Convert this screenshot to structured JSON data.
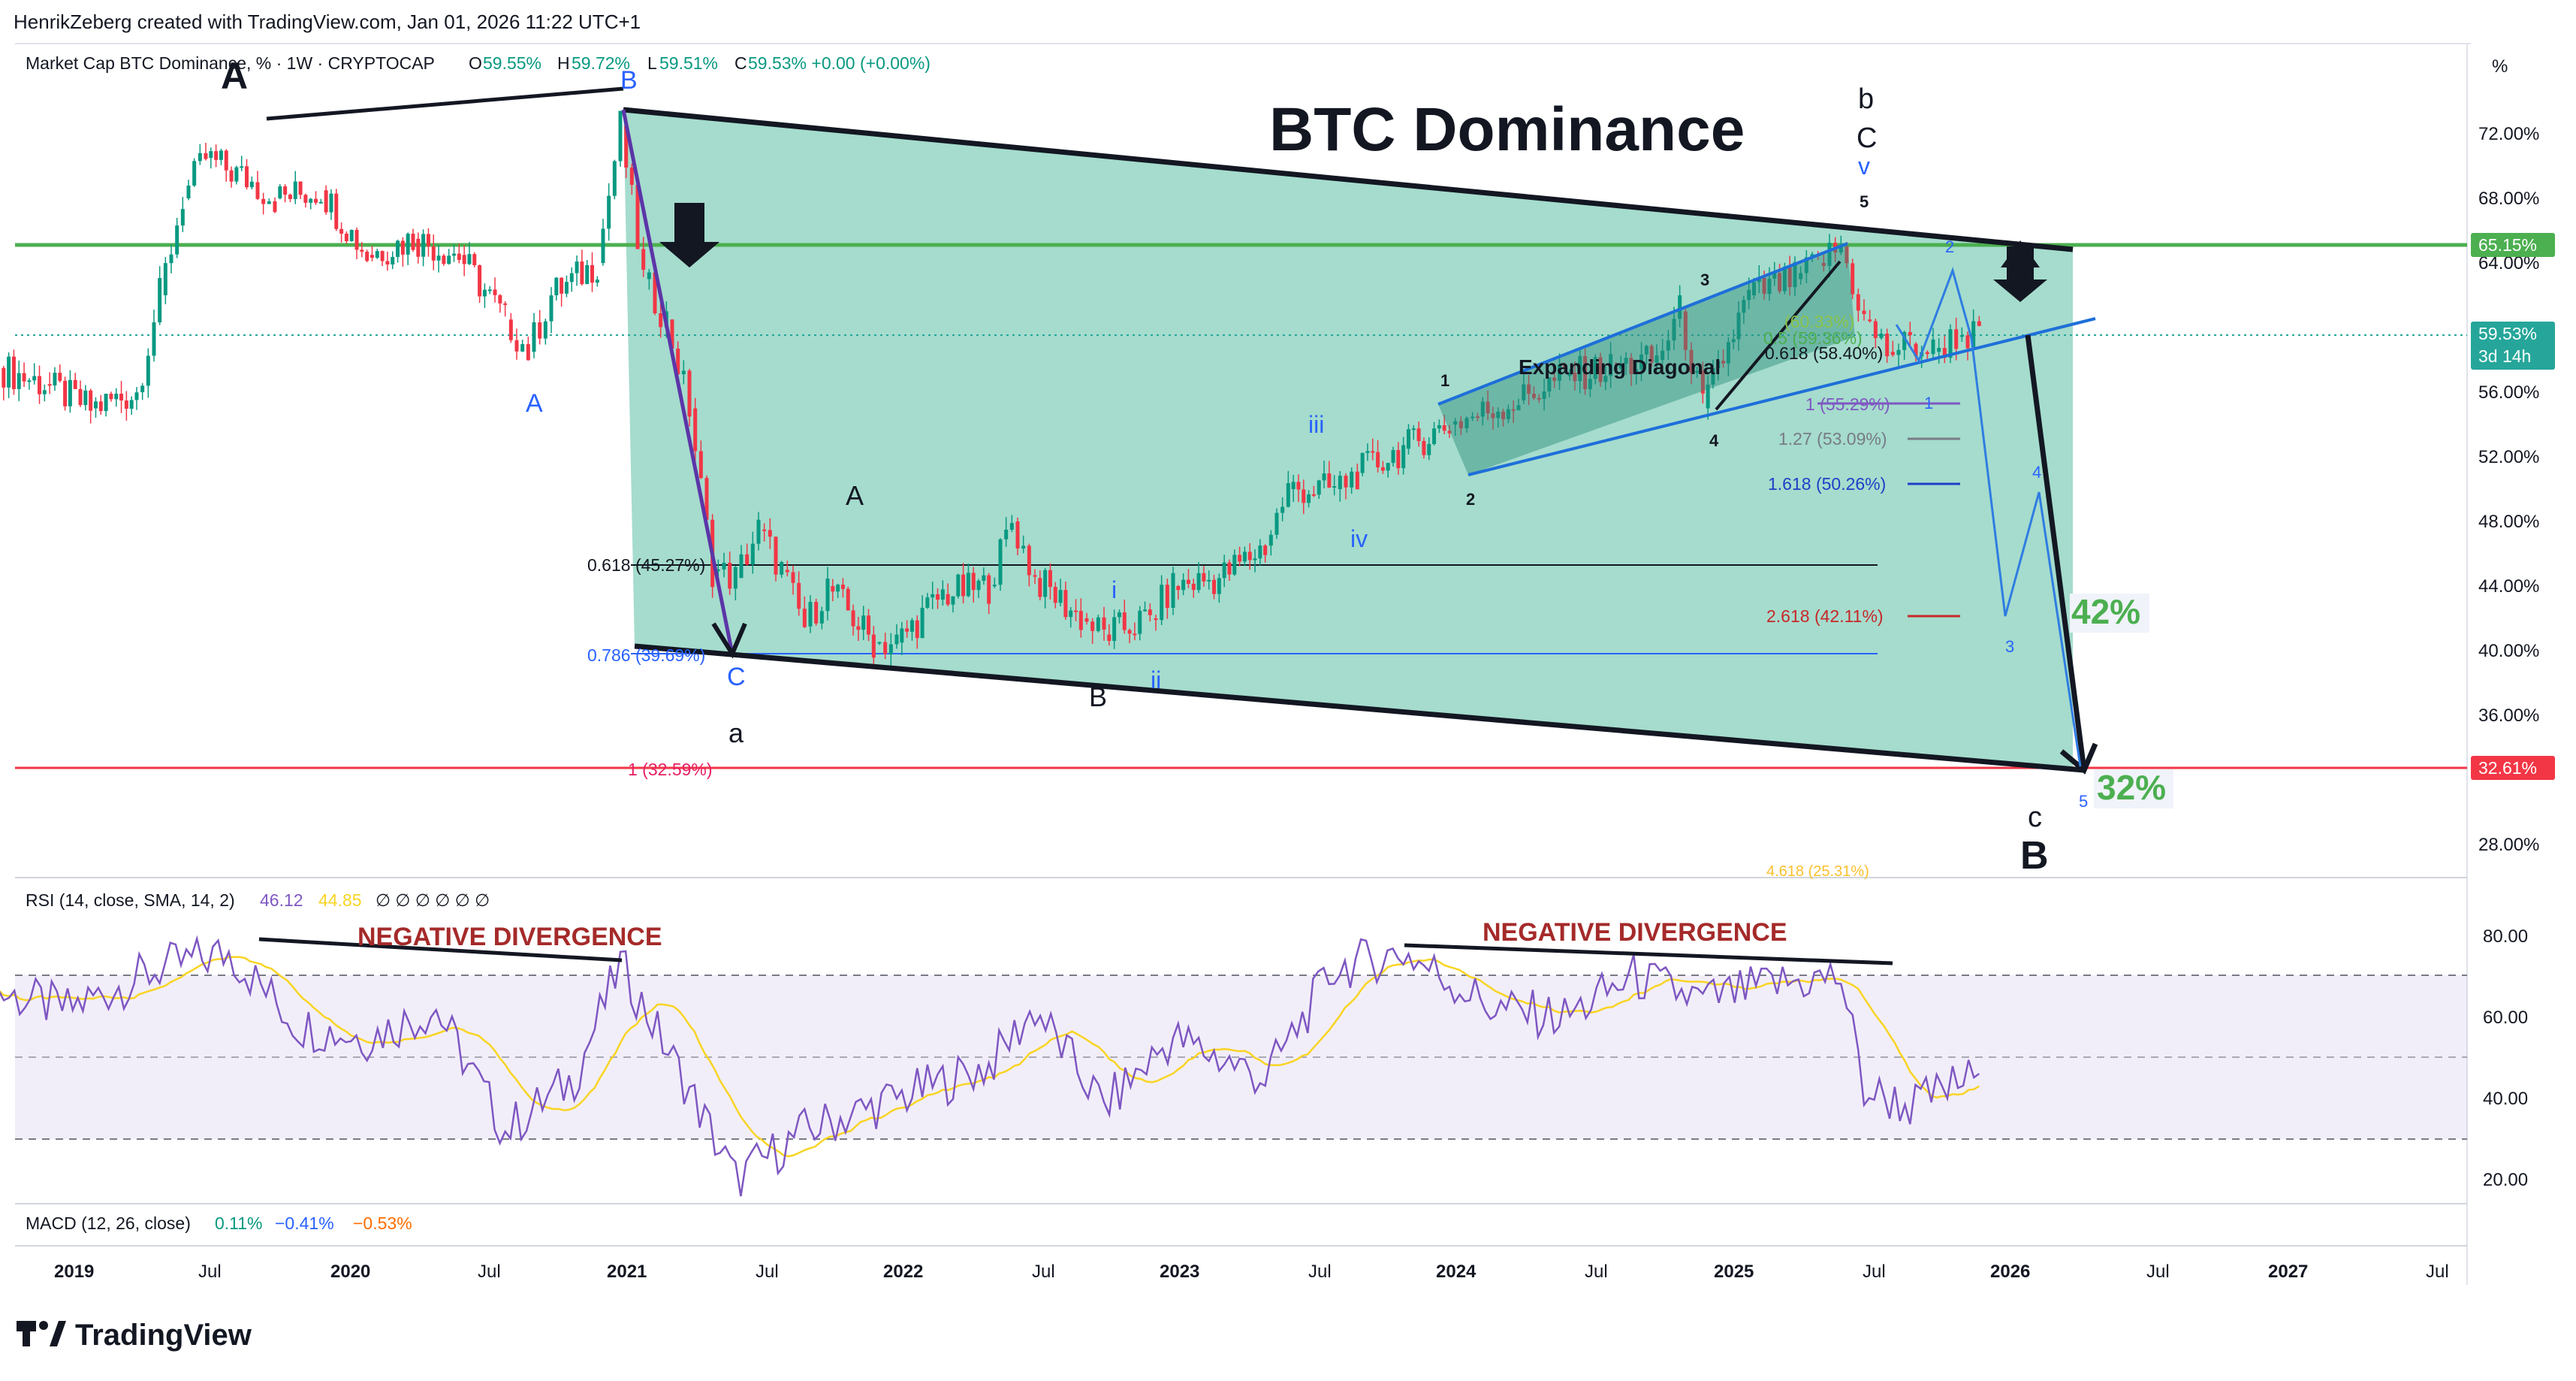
{
  "header": {
    "credit": "HenrikZeberg created with TradingView.com, Jan 01, 2026 11:22 UTC+1",
    "symbol": "Market Cap BTC Dominance, % · 1W · CRYPTOCAP",
    "ohlc": [
      {
        "k": "O",
        "v": "59.55%"
      },
      {
        "k": "H",
        "v": "59.72%"
      },
      {
        "k": "L",
        "v": "59.51%"
      },
      {
        "k": "C",
        "v": "59.53% +0.00 (+0.00%)"
      }
    ],
    "unit": "%"
  },
  "title": "BTC Dominance",
  "price_axis": {
    "ticks": [
      "72.00%",
      "68.00%",
      "64.00%",
      "56.00%",
      "52.00%",
      "48.00%",
      "44.00%",
      "40.00%",
      "36.00%",
      "28.00%"
    ],
    "badges": [
      {
        "label": "65.15%",
        "color": "#4caf50"
      },
      {
        "label": "59.53%",
        "label2": "3d 14h",
        "color": "#26a69a"
      },
      {
        "label": "32.61%",
        "color": "#f23645"
      }
    ]
  },
  "time_axis": [
    "2019",
    "Jul",
    "2020",
    "Jul",
    "2021",
    "Jul",
    "2022",
    "Jul",
    "2023",
    "Jul",
    "2024",
    "Jul",
    "2025",
    "Jul",
    "2026",
    "Jul",
    "2027",
    "Jul"
  ],
  "rsi": {
    "label": "RSI (14, close, SMA, 14, 2)",
    "value": "46.12",
    "sma": "44.85",
    "nulls": "∅ ∅ ∅ ∅ ∅ ∅",
    "ticks": [
      "80.00",
      "60.00",
      "40.00",
      "20.00"
    ],
    "divergence_label": "NEGATIVE DIVERGENCE"
  },
  "macd": {
    "label": "MACD (12, 26, close)",
    "v1": "0.11%",
    "v2": "−0.41%",
    "v3": "−0.53%"
  },
  "annotations": {
    "wave_A_top": "A",
    "wave_B_top": "B",
    "wave_A_blue": "A",
    "wave_C_blue": "C",
    "wave_a": "a",
    "wave_A_mid": "A",
    "wave_B_mid": "B",
    "wave_i": "i",
    "wave_ii": "ii",
    "wave_iii": "iii",
    "wave_iv": "iv",
    "wave_v": "v",
    "wave_b": "b",
    "wave_C_top": "C",
    "wave_c": "c",
    "wave_B_final": "B",
    "diag_1": "1",
    "diag_2": "2",
    "diag_3": "3",
    "diag_4": "4",
    "diag_5": "5",
    "proj_1": "1",
    "proj_2": "2",
    "proj_3": "3",
    "proj_4": "4",
    "proj_5": "5",
    "expanding_diagonal": "Expanding Diagonal",
    "target_42": "42%",
    "target_32": "32%"
  },
  "fib_levels": [
    {
      "label": "0.618 (45.27%)",
      "color": "#131722"
    },
    {
      "label": "0.786 (39.69%)",
      "color": "#2962ff"
    },
    {
      "label": "1 (32.59%)",
      "color": "#e91e63"
    },
    {
      "label": "(60.33%)",
      "color": "#8bc34a"
    },
    {
      "label": "0.5 (59.36%)",
      "color": "#4caf50"
    },
    {
      "label": "0.618 (58.40%)",
      "color": "#131722"
    },
    {
      "label": "1 (55.29%)",
      "color": "#7e57c2"
    },
    {
      "label": "1.27 (53.09%)",
      "color": "#787b86"
    },
    {
      "label": "1.618 (50.26%)",
      "color": "#1e3fc8"
    },
    {
      "label": "2.618 (42.11%)",
      "color": "#c62828"
    },
    {
      "label": "4.618 (25.31%)",
      "color": "#fbc02d"
    }
  ],
  "chart_data": {
    "type": "line",
    "title": "BTC Dominance",
    "xlabel": "",
    "ylabel": "%",
    "ylim": [
      26,
      76
    ],
    "x_range": [
      "2018-10",
      "2027-09"
    ],
    "series": [
      {
        "name": "Market Cap BTC Dominance",
        "x": [
          "2018-10",
          "2018-12",
          "2019-02",
          "2019-04",
          "2019-05",
          "2019-06",
          "2019-07",
          "2019-09",
          "2019-10",
          "2019-12",
          "2020-02",
          "2020-04",
          "2020-06",
          "2020-08",
          "2020-09",
          "2020-10",
          "2020-12",
          "2021-01",
          "2021-02",
          "2021-03",
          "2021-04",
          "2021-05",
          "2021-06",
          "2021-07",
          "2021-08",
          "2021-09",
          "2021-10",
          "2021-12",
          "2022-01",
          "2022-03",
          "2022-05",
          "2022-06",
          "2022-07",
          "2022-09",
          "2022-10",
          "2022-12",
          "2023-01",
          "2023-03",
          "2023-05",
          "2023-06",
          "2023-08",
          "2023-09",
          "2023-11",
          "2024-01",
          "2024-02",
          "2024-04",
          "2024-06",
          "2024-08",
          "2024-10",
          "2024-11",
          "2024-12",
          "2025-02",
          "2025-04",
          "2025-05",
          "2025-06",
          "2025-07",
          "2025-08",
          "2025-09",
          "2025-10",
          "2025-11",
          "2025-12"
        ],
        "values": [
          57.5,
          56.5,
          55.0,
          56.0,
          62.0,
          68.0,
          70.5,
          69.0,
          68.0,
          68.5,
          64.5,
          65.5,
          64.5,
          60.5,
          58.5,
          62.0,
          64.0,
          72.5,
          63.0,
          60.5,
          55.0,
          45.0,
          44.5,
          47.5,
          45.0,
          41.5,
          44.0,
          40.5,
          40.5,
          43.5,
          44.0,
          48.0,
          44.5,
          42.0,
          41.0,
          42.0,
          44.0,
          44.5,
          46.5,
          50.0,
          50.0,
          51.0,
          52.5,
          54.0,
          54.5,
          55.5,
          57.0,
          57.5,
          58.0,
          61.0,
          55.0,
          62.0,
          63.0,
          64.0,
          65.0,
          60.5,
          58.5,
          59.0,
          58.5,
          59.5,
          59.53
        ]
      },
      {
        "name": "RSI",
        "x": [
          "2018-10",
          "2019-01",
          "2019-05",
          "2019-08",
          "2019-11",
          "2020-02",
          "2020-05",
          "2020-08",
          "2020-11",
          "2021-01",
          "2021-04",
          "2021-06",
          "2021-09",
          "2022-01",
          "2022-05",
          "2022-07",
          "2022-10",
          "2023-01",
          "2023-05",
          "2023-08",
          "2023-11",
          "2024-03",
          "2024-06",
          "2024-09",
          "2024-12",
          "2025-03",
          "2025-06",
          "2025-07",
          "2025-09",
          "2025-12"
        ],
        "values": [
          66,
          62,
          72,
          76,
          58,
          55,
          62,
          32,
          45,
          73,
          42,
          20,
          32,
          40,
          48,
          62,
          38,
          55,
          45,
          72,
          76,
          62,
          60,
          70,
          64,
          68,
          70,
          42,
          38,
          46.12
        ]
      }
    ],
    "targets": [
      "42%",
      "32%"
    ]
  }
}
